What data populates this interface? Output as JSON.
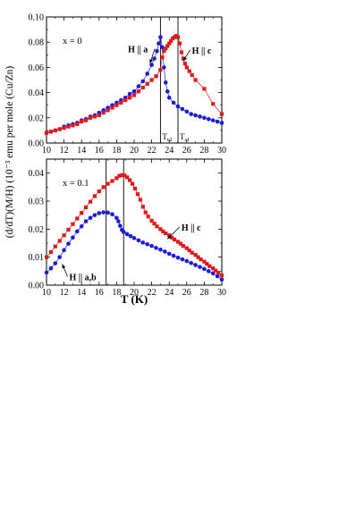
{
  "figure": {
    "ylabel": "(d/dT)(M/H) (10⁻³ emu per mole (Cu/Zn)",
    "xlabel": "T   (K)"
  },
  "chart_data": [
    {
      "type": "scatter",
      "panel_label": "x = 0",
      "xlim": [
        10,
        30
      ],
      "ylim": [
        0,
        0.1
      ],
      "xticks": [
        "10",
        "12",
        "14",
        "16",
        "18",
        "20",
        "22",
        "24",
        "26",
        "28",
        "30"
      ],
      "yticks": [
        "0.00",
        "0.02",
        "0.04",
        "0.06",
        "0.08",
        "0.10"
      ],
      "grid": false,
      "vlines": [
        {
          "x": 23.0,
          "label": "T",
          "sub": "c2"
        },
        {
          "x": 25.0,
          "label": "T",
          "sub": "c1"
        }
      ],
      "series": [
        {
          "name": "H || a",
          "color": "#1a1ad8",
          "marker": "circle",
          "label_pos": [
            19.3,
            0.072
          ],
          "arrow_to": [
            21.8,
            0.063
          ],
          "x": [
            10.0,
            10.5,
            11.0,
            11.5,
            12.0,
            12.5,
            13.0,
            13.5,
            14.0,
            14.5,
            15.0,
            15.5,
            16.0,
            16.5,
            17.0,
            17.5,
            18.0,
            18.5,
            19.0,
            19.5,
            20.0,
            20.5,
            21.0,
            21.5,
            22.0,
            22.3,
            22.6,
            22.8,
            23.0,
            23.2,
            23.4,
            23.6,
            23.8,
            24.0,
            24.5,
            25.0,
            25.5,
            26.0,
            26.5,
            27.0,
            27.5,
            28.0,
            28.5,
            29.0,
            29.5,
            30.0
          ],
          "y": [
            0.008,
            0.009,
            0.01,
            0.011,
            0.013,
            0.014,
            0.015,
            0.016,
            0.018,
            0.019,
            0.021,
            0.022,
            0.024,
            0.026,
            0.028,
            0.03,
            0.032,
            0.034,
            0.036,
            0.039,
            0.041,
            0.045,
            0.049,
            0.055,
            0.062,
            0.067,
            0.073,
            0.079,
            0.084,
            0.076,
            0.06,
            0.048,
            0.041,
            0.036,
            0.032,
            0.029,
            0.027,
            0.025,
            0.023,
            0.022,
            0.021,
            0.02,
            0.019,
            0.018,
            0.017,
            0.016
          ]
        },
        {
          "name": "H || c",
          "color": "#e01818",
          "marker": "square",
          "label_pos": [
            26.6,
            0.071
          ],
          "arrow_to": [
            25.6,
            0.065
          ],
          "x": [
            10.0,
            10.5,
            11.0,
            11.5,
            12.0,
            12.5,
            13.0,
            13.5,
            14.0,
            14.5,
            15.0,
            15.5,
            16.0,
            16.5,
            17.0,
            17.5,
            18.0,
            18.5,
            19.0,
            19.5,
            20.0,
            20.5,
            21.0,
            21.5,
            22.0,
            22.5,
            23.0,
            23.2,
            23.4,
            23.6,
            23.8,
            24.0,
            24.2,
            24.4,
            24.6,
            24.8,
            25.0,
            25.2,
            25.4,
            25.6,
            25.8,
            26.0,
            26.3,
            26.6,
            27.0,
            28.0,
            29.0,
            30.0
          ],
          "y": [
            0.008,
            0.009,
            0.01,
            0.011,
            0.012,
            0.013,
            0.014,
            0.015,
            0.017,
            0.018,
            0.02,
            0.021,
            0.022,
            0.024,
            0.026,
            0.028,
            0.03,
            0.032,
            0.034,
            0.036,
            0.038,
            0.041,
            0.044,
            0.047,
            0.05,
            0.053,
            0.058,
            0.068,
            0.073,
            0.075,
            0.077,
            0.079,
            0.081,
            0.083,
            0.084,
            0.085,
            0.084,
            0.079,
            0.072,
            0.067,
            0.063,
            0.06,
            0.057,
            0.054,
            0.05,
            0.043,
            0.031,
            0.023
          ]
        }
      ]
    },
    {
      "type": "scatter",
      "panel_label": "x = 0.1",
      "xlim": [
        10,
        30
      ],
      "ylim": [
        0,
        0.045
      ],
      "xticks": [
        "10",
        "12",
        "14",
        "16",
        "18",
        "20",
        "22",
        "24",
        "26",
        "28",
        "30"
      ],
      "yticks": [
        "0.00",
        "0.01",
        "0.02",
        "0.03",
        "0.04"
      ],
      "grid": false,
      "vlines": [
        {
          "x": 16.8,
          "label": "",
          "sub": ""
        },
        {
          "x": 18.8,
          "label": "",
          "sub": ""
        }
      ],
      "series": [
        {
          "name": "H || a,b",
          "color": "#1a1ad8",
          "marker": "circle",
          "label_pos": [
            12.6,
            0.0018
          ],
          "arrow_to": [
            11.8,
            0.0075
          ],
          "x": [
            10.0,
            10.5,
            11.0,
            11.5,
            12.0,
            12.5,
            13.0,
            13.5,
            14.0,
            14.5,
            15.0,
            15.5,
            16.0,
            16.5,
            17.0,
            17.5,
            18.0,
            18.2,
            18.4,
            18.6,
            18.8,
            19.2,
            19.6,
            20.0,
            20.5,
            21.0,
            21.5,
            22.0,
            22.5,
            23.0,
            23.5,
            24.0,
            24.5,
            25.0,
            25.5,
            26.0,
            26.5,
            27.0,
            27.5,
            28.0,
            28.5,
            29.0,
            29.5,
            30.0
          ],
          "y": [
            0.0045,
            0.006,
            0.0078,
            0.01,
            0.0125,
            0.0148,
            0.017,
            0.0192,
            0.021,
            0.0228,
            0.024,
            0.025,
            0.0257,
            0.026,
            0.0259,
            0.0253,
            0.024,
            0.0228,
            0.0212,
            0.0197,
            0.019,
            0.0182,
            0.0175,
            0.0168,
            0.016,
            0.0152,
            0.0146,
            0.014,
            0.0133,
            0.0127,
            0.012,
            0.0112,
            0.0105,
            0.0098,
            0.0092,
            0.0086,
            0.0079,
            0.0072,
            0.0065,
            0.0058,
            0.005,
            0.0042,
            0.0032,
            0.002
          ]
        },
        {
          "name": "H || c",
          "color": "#e01818",
          "marker": "square",
          "label_pos": [
            25.4,
            0.0195
          ],
          "arrow_to": [
            23.8,
            0.0165
          ],
          "x": [
            10.0,
            10.5,
            11.0,
            11.5,
            12.0,
            12.5,
            13.0,
            13.5,
            14.0,
            14.5,
            15.0,
            15.5,
            16.0,
            16.5,
            17.0,
            17.5,
            18.0,
            18.3,
            18.6,
            18.9,
            19.2,
            19.5,
            19.8,
            20.1,
            20.4,
            20.7,
            21.0,
            21.3,
            21.6,
            22.0,
            22.3,
            22.6,
            23.0,
            23.3,
            23.6,
            24.0,
            24.3,
            24.6,
            25.0,
            25.3,
            25.6,
            26.0,
            26.3,
            26.6,
            27.0,
            27.3,
            27.6,
            28.0,
            28.3,
            28.6,
            29.0,
            29.3,
            29.6,
            30.0
          ],
          "y": [
            0.01,
            0.0118,
            0.0138,
            0.0158,
            0.0178,
            0.0198,
            0.0218,
            0.0238,
            0.0258,
            0.0278,
            0.0298,
            0.0318,
            0.0335,
            0.035,
            0.0362,
            0.0372,
            0.0382,
            0.039,
            0.0393,
            0.0392,
            0.0385,
            0.0375,
            0.0362,
            0.0345,
            0.0325,
            0.0305,
            0.028,
            0.026,
            0.0245,
            0.023,
            0.022,
            0.021,
            0.02,
            0.0192,
            0.0185,
            0.0178,
            0.017,
            0.0163,
            0.0155,
            0.0148,
            0.014,
            0.0132,
            0.0124,
            0.0116,
            0.0108,
            0.01,
            0.0092,
            0.0084,
            0.0076,
            0.0068,
            0.006,
            0.0052,
            0.0044,
            0.0035
          ]
        }
      ]
    }
  ]
}
